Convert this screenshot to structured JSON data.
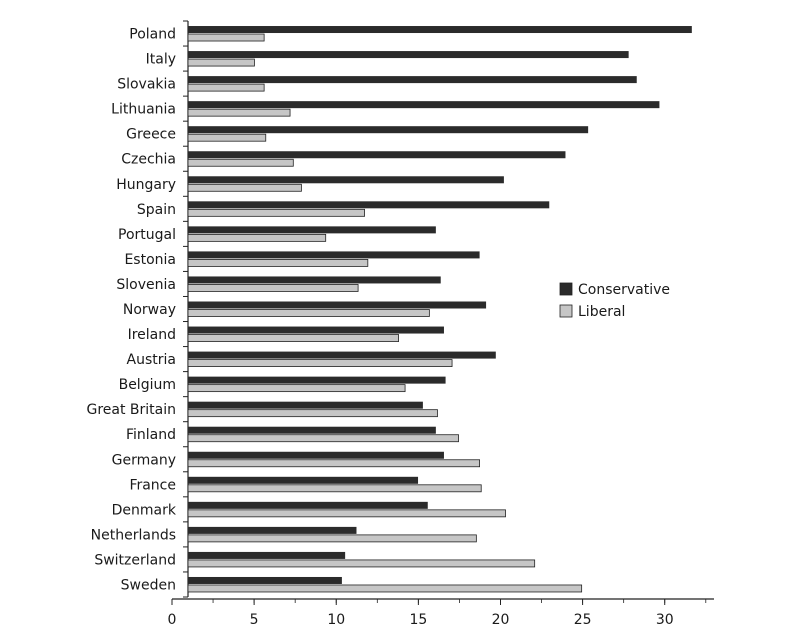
{
  "chart_data": {
    "type": "bar",
    "orientation": "horizontal",
    "categories": [
      "Poland",
      "Italy",
      "Slovakia",
      "Lithuania",
      "Greece",
      "Czechia",
      "Hungary",
      "Spain",
      "Portugal",
      "Estonia",
      "Slovenia",
      "Norway",
      "Ireland",
      "Austria",
      "Belgium",
      "Great Britain",
      "Finland",
      "Germany",
      "France",
      "Denmark",
      "Netherlands",
      "Switzerland",
      "Sweden"
    ],
    "series": [
      {
        "name": "Conservative",
        "color": "#2b2b2b",
        "values": [
          31.1,
          27.2,
          27.7,
          29.1,
          24.7,
          23.3,
          19.5,
          22.3,
          15.3,
          18.0,
          15.6,
          18.4,
          15.8,
          19.0,
          15.9,
          14.5,
          15.3,
          15.8,
          14.2,
          14.8,
          10.4,
          9.7,
          9.5
        ]
      },
      {
        "name": "Liberal",
        "color": "#c6c6c6",
        "values": [
          4.7,
          4.1,
          4.7,
          6.3,
          4.8,
          6.5,
          7.0,
          10.9,
          8.5,
          11.1,
          10.5,
          14.9,
          13.0,
          16.3,
          13.4,
          15.4,
          16.7,
          18.0,
          18.1,
          19.6,
          17.8,
          21.4,
          24.3
        ]
      }
    ],
    "xlim": [
      0,
      33
    ],
    "xticks": [
      "0",
      "5",
      "10",
      "15",
      "20",
      "25",
      "30"
    ],
    "xlabel": "",
    "ylabel": "",
    "legend": {
      "position": "right-center",
      "entries": [
        "Conservative",
        "Liberal"
      ]
    },
    "grid": false
  }
}
